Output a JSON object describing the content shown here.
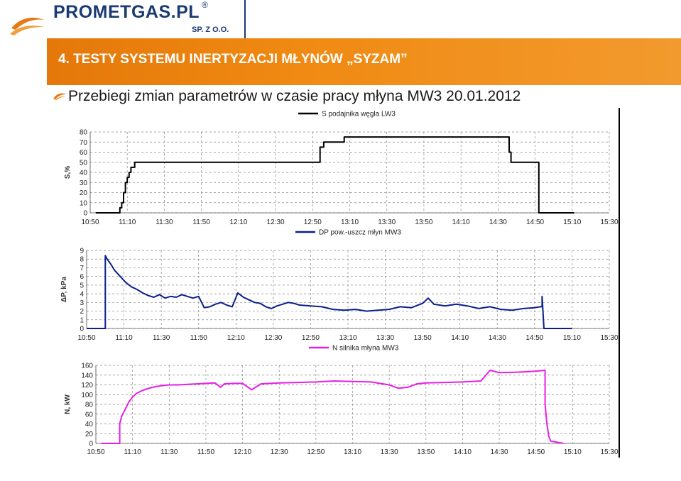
{
  "logo": {
    "name": "PROMETGAS.PL",
    "reg": "®",
    "subname": "SP. Z O.O."
  },
  "banner": {
    "title": "4. TESTY SYSTEMU INERTYZACJI MŁYNÓW „SYZAM”"
  },
  "subtitle": "Przebiegi zmian parametrów w czasie pracy młyna MW3 20.01.2012",
  "colors": {
    "banner": "#f08a12",
    "logo_blue": "#1b3a73",
    "series1": "#000000",
    "series2": "#0a1f8c",
    "series3": "#e81ee8"
  },
  "chart_data": [
    {
      "type": "line",
      "legend": "S podajnika węgla LW3",
      "ylabel": "S,%",
      "xlabel": "",
      "ylim": [
        0,
        80
      ],
      "yticks": [
        "0",
        "10",
        "20",
        "30",
        "40",
        "50",
        "60",
        "70",
        "80"
      ],
      "xticks": [
        "10:50",
        "11:10",
        "11:30",
        "11:50",
        "12:10",
        "12:30",
        "12:50",
        "13:10",
        "13:30",
        "13:50",
        "14:10",
        "14:30",
        "14:50",
        "15:10",
        "15:30"
      ],
      "xrange": [
        "10:50",
        "15:30"
      ],
      "grid": true,
      "series": [
        {
          "name": "S podajnika węgla LW3",
          "x": [
            "10:53",
            "11:06",
            "11:06",
            "11:07",
            "11:07",
            "11:08",
            "11:08",
            "11:09",
            "11:09",
            "11:10",
            "11:10",
            "11:11",
            "11:11",
            "11:12",
            "11:12",
            "11:14",
            "11:14",
            "11:17",
            "11:17",
            "12:54",
            "12:54",
            "12:56",
            "12:56",
            "12:58",
            "12:58",
            "13:07",
            "13:07",
            "14:36",
            "14:36",
            "14:37",
            "14:37",
            "14:52",
            "14:52",
            "15:11"
          ],
          "y": [
            0,
            0,
            5,
            5,
            10,
            10,
            20,
            20,
            30,
            30,
            35,
            35,
            40,
            40,
            45,
            45,
            50,
            50,
            50,
            50,
            65,
            65,
            70,
            70,
            70,
            70,
            75,
            75,
            60,
            60,
            50,
            50,
            0,
            0
          ]
        }
      ]
    },
    {
      "type": "line",
      "legend": "DP pow.-uszcz młyn MW3",
      "ylabel": "ΔP, kPa",
      "xlabel": "",
      "ylim": [
        0,
        9
      ],
      "yticks": [
        "0",
        "1",
        "2",
        "3",
        "4",
        "5",
        "6",
        "7",
        "8",
        "9"
      ],
      "xticks": [
        "10:50",
        "11:10",
        "11:30",
        "11:50",
        "12:10",
        "12:30",
        "12:50",
        "13:10",
        "13:30",
        "13:50",
        "14:10",
        "14:30",
        "14:50",
        "15:10",
        "15:30"
      ],
      "xrange": [
        "10:50",
        "15:30"
      ],
      "grid": true,
      "series": [
        {
          "name": "DP pow.-uszcz młyn MW3",
          "x": [
            "10:50",
            "11:00",
            "11:00",
            "11:01",
            "11:03",
            "11:05",
            "11:08",
            "11:11",
            "11:14",
            "11:17",
            "11:20",
            "11:23",
            "11:26",
            "11:29",
            "11:32",
            "11:35",
            "11:38",
            "11:41",
            "11:44",
            "11:47",
            "11:50",
            "11:53",
            "11:56",
            "11:59",
            "12:02",
            "12:05",
            "12:08",
            "12:11",
            "12:14",
            "12:17",
            "12:20",
            "12:23",
            "12:26",
            "12:29",
            "12:32",
            "12:35",
            "12:38",
            "12:41",
            "12:44",
            "12:50",
            "12:56",
            "13:02",
            "13:08",
            "13:14",
            "13:20",
            "13:26",
            "13:32",
            "13:38",
            "13:44",
            "13:50",
            "13:53",
            "13:56",
            "14:02",
            "14:08",
            "14:14",
            "14:20",
            "14:26",
            "14:32",
            "14:38",
            "14:44",
            "14:50",
            "14:53",
            "14:54",
            "14:54",
            "14:55",
            "15:10"
          ],
          "y": [
            0,
            0,
            8.4,
            8.0,
            7.4,
            6.7,
            6.0,
            5.3,
            4.8,
            4.5,
            4.1,
            3.8,
            3.6,
            3.9,
            3.5,
            3.7,
            3.6,
            3.9,
            3.7,
            3.5,
            3.7,
            2.4,
            2.5,
            2.8,
            3.0,
            2.7,
            2.5,
            4.1,
            3.6,
            3.3,
            3.0,
            2.9,
            2.5,
            2.3,
            2.6,
            2.8,
            3.0,
            2.9,
            2.7,
            2.6,
            2.5,
            2.2,
            2.1,
            2.2,
            2.0,
            2.1,
            2.2,
            2.5,
            2.4,
            2.9,
            3.5,
            2.8,
            2.6,
            2.8,
            2.6,
            2.3,
            2.5,
            2.2,
            2.1,
            2.3,
            2.4,
            2.5,
            2.5,
            3.7,
            0,
            0
          ]
        }
      ]
    },
    {
      "type": "line",
      "legend": "N silnika młyna MW3",
      "ylabel": "N, kW",
      "xlabel": "",
      "ylim": [
        0,
        160
      ],
      "yticks": [
        "0",
        "20",
        "40",
        "60",
        "80",
        "100",
        "120",
        "140",
        "160"
      ],
      "xticks": [
        "10:50",
        "11:10",
        "11:30",
        "11:50",
        "12:10",
        "12:30",
        "12:50",
        "13:10",
        "13:30",
        "13:50",
        "14:10",
        "14:30",
        "14:50",
        "15:10",
        "15:30"
      ],
      "xrange": [
        "10:50",
        "15:30"
      ],
      "grid": true,
      "series": [
        {
          "name": "N silnika młyna MW3",
          "x": [
            "10:53",
            "11:03",
            "11:03",
            "11:04",
            "11:06",
            "11:08",
            "11:10",
            "11:12",
            "11:15",
            "11:18",
            "11:21",
            "11:25",
            "11:30",
            "11:35",
            "11:40",
            "11:45",
            "11:50",
            "11:55",
            "11:58",
            "12:00",
            "12:05",
            "12:10",
            "12:15",
            "12:20",
            "12:25",
            "12:30",
            "12:40",
            "12:50",
            "13:00",
            "13:10",
            "13:20",
            "13:30",
            "13:35",
            "13:40",
            "13:45",
            "13:50",
            "14:00",
            "14:10",
            "14:20",
            "14:25",
            "14:30",
            "14:40",
            "14:50",
            "14:55",
            "14:55",
            "14:56",
            "14:57",
            "14:58",
            "15:05"
          ],
          "y": [
            0,
            0,
            40,
            55,
            70,
            85,
            95,
            102,
            108,
            112,
            115,
            118,
            120,
            120,
            121,
            122,
            123,
            124,
            115,
            122,
            123,
            123,
            110,
            122,
            123,
            124,
            125,
            126,
            128,
            127,
            126,
            120,
            113,
            115,
            122,
            124,
            125,
            126,
            128,
            150,
            145,
            146,
            148,
            150,
            80,
            40,
            15,
            5,
            0
          ]
        }
      ]
    }
  ]
}
